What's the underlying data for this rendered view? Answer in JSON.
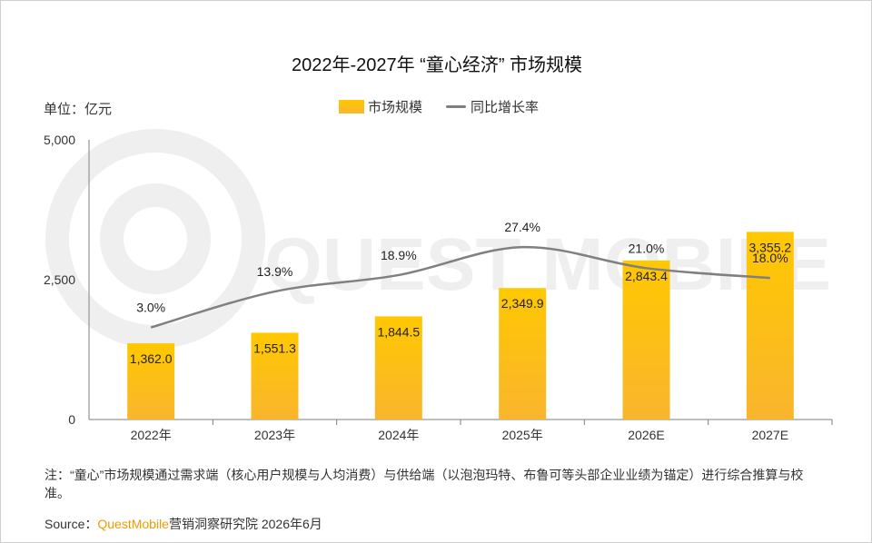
{
  "title": "2022年-2027年 “童心经济” 市场规模",
  "unit_label": "单位：亿元",
  "legend": {
    "bar": "市场规模",
    "line": "同比增长率"
  },
  "colors": {
    "bar_top": "#ffc800",
    "bar_bottom": "#f9b52e",
    "line": "#808080",
    "axis": "#7f7f7f"
  },
  "chart_data": {
    "type": "bar",
    "categories": [
      "2022年",
      "2023年",
      "2024年",
      "2025年",
      "2026E",
      "2027E"
    ],
    "series": [
      {
        "name": "市场规模",
        "type": "bar",
        "values": [
          1362.0,
          1551.3,
          1844.5,
          2349.9,
          2843.4,
          3355.2
        ],
        "labels": [
          "1,362.0",
          "1,551.3",
          "1,844.5",
          "2,349.9",
          "2,843.4",
          "3,355.2"
        ]
      },
      {
        "name": "同比增长率",
        "type": "line",
        "values": [
          3.0,
          13.9,
          18.9,
          27.4,
          21.0,
          18.0
        ],
        "labels": [
          "3.0%",
          "13.9%",
          "18.9%",
          "27.4%",
          "21.0%",
          "18.0%"
        ]
      }
    ],
    "y_ticks": [
      "0",
      "2,500",
      "5,000"
    ],
    "ylim": [
      0,
      5000
    ],
    "line_ylim": [
      -25,
      60
    ],
    "grid": false,
    "legend_position": "top"
  },
  "note": "注：“童心”市场规模通过需求端（核心用户规模与人均消费）与供给端（以泡泡玛特、布鲁可等头部企业业绩为锚定）进行综合推算与校准。",
  "source": {
    "prefix": "Source：",
    "brand": "QuestMobile",
    "suffix": "营销洞察研究院 2026年6月"
  },
  "watermark": "QUEST MOBILE"
}
